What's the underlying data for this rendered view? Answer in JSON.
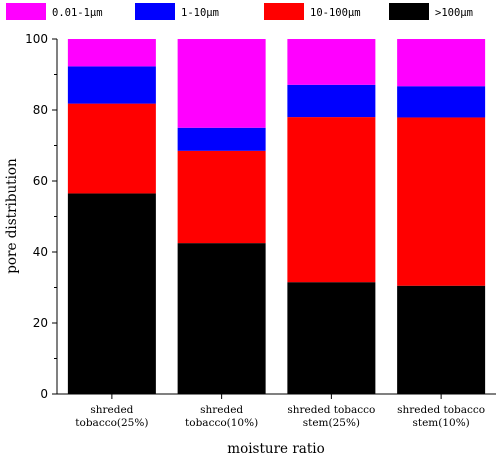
{
  "chart_data": {
    "type": "bar",
    "stacked": true,
    "categories": [
      [
        "shreded",
        "tobacco(25%)"
      ],
      [
        "shreded",
        "tobacco(10%)"
      ],
      [
        "shreded tobacco",
        "stem(25%)"
      ],
      [
        "shreded tobacco",
        "stem(10%)"
      ]
    ],
    "series": [
      {
        "name": ">100μm",
        "color": "#000000",
        "values": [
          56.5,
          42.5,
          31.5,
          30.5
        ]
      },
      {
        "name": "10-100μm",
        "color": "#ff0000",
        "values": [
          25.3,
          26.0,
          46.5,
          47.4
        ]
      },
      {
        "name": "1-10μm",
        "color": "#0000ff",
        "values": [
          10.5,
          6.5,
          9.1,
          8.8
        ]
      },
      {
        "name": "0.01-1μm",
        "color": "#ff00ff",
        "values": [
          7.7,
          25.0,
          12.9,
          13.3
        ]
      }
    ],
    "legend_order": [
      {
        "label": "0.01-1μm",
        "color": "#ff00ff"
      },
      {
        "label": "1-10μm",
        "color": "#0000ff"
      },
      {
        "label": "10-100μm",
        "color": "#ff0000"
      },
      {
        "label": ">100μm",
        "color": "#000000"
      }
    ],
    "xlabel": "moisture ratio",
    "ylabel": "pore distribution",
    "ylim": [
      0,
      100
    ],
    "yticks": [
      0,
      20,
      40,
      60,
      80,
      100
    ],
    "legend_position": "top",
    "grid": false
  }
}
